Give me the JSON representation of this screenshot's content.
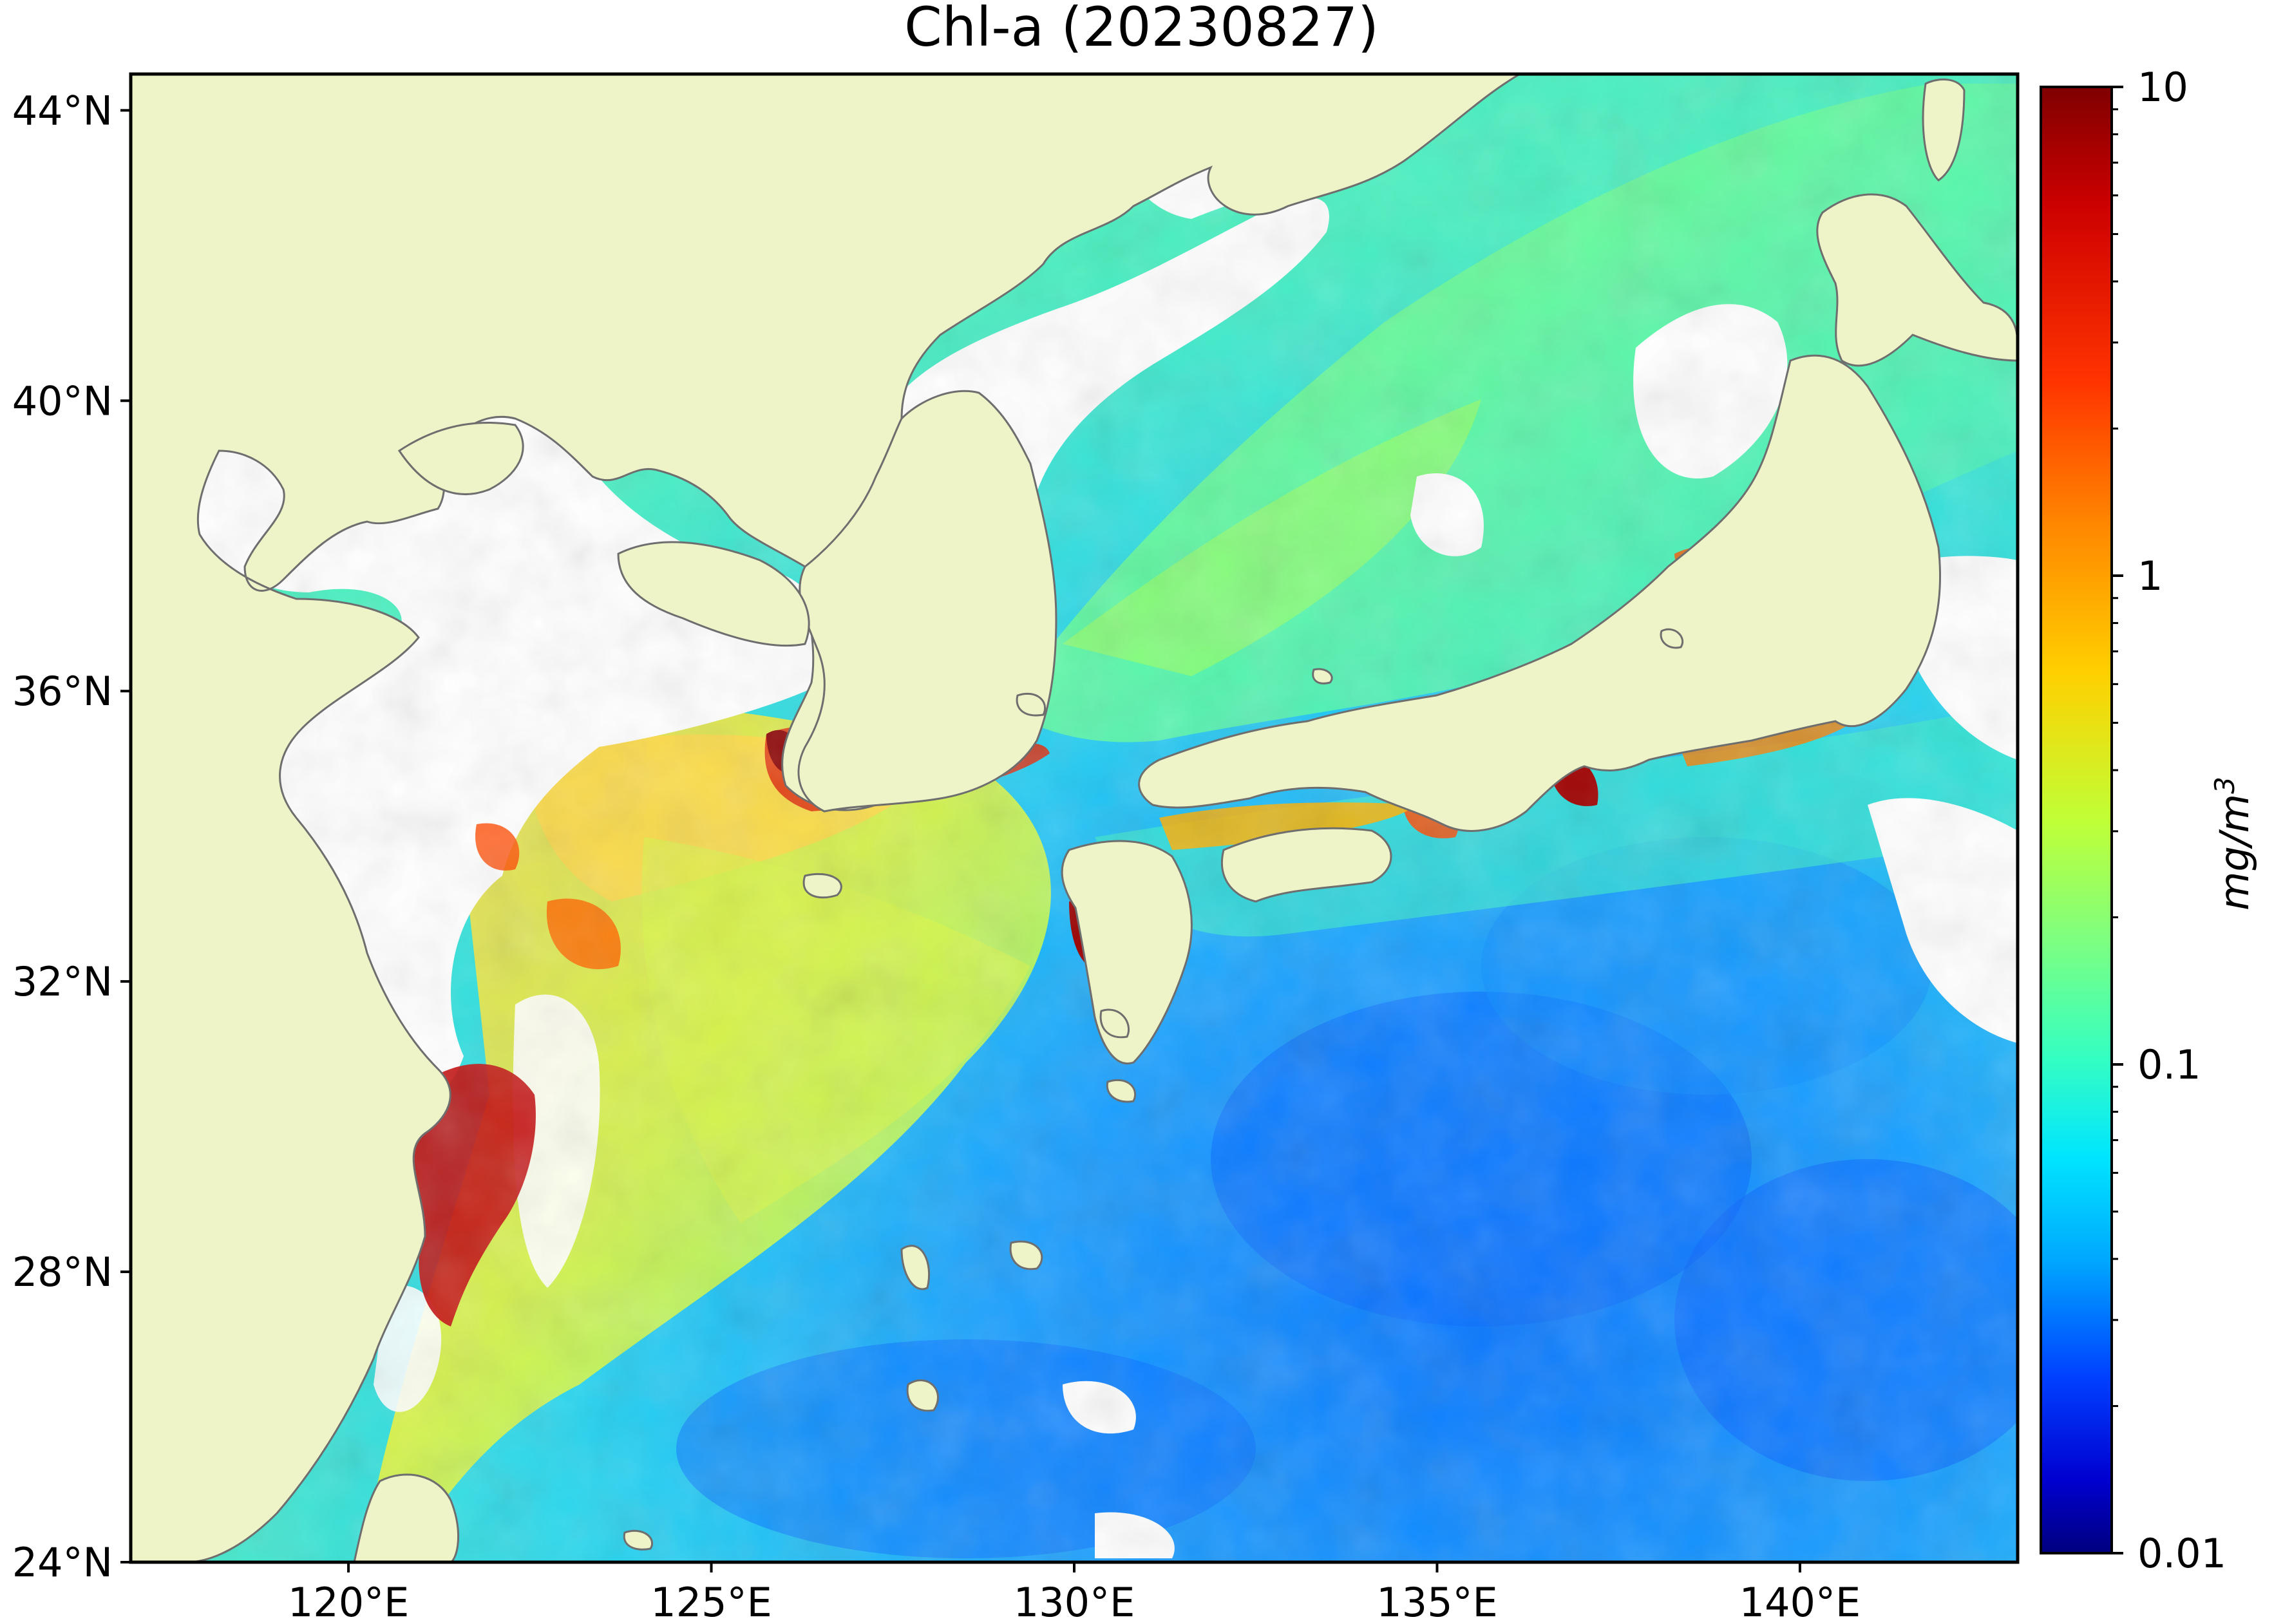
{
  "title": "Chl-a (20230827)",
  "map": {
    "lon_range": [
      117,
      143
    ],
    "lat_range": [
      24,
      44.5
    ],
    "lat_ticks": [
      {
        "value": 44,
        "label": "44°N"
      },
      {
        "value": 40,
        "label": "40°N"
      },
      {
        "value": 36,
        "label": "36°N"
      },
      {
        "value": 32,
        "label": "32°N"
      },
      {
        "value": 28,
        "label": "28°N"
      },
      {
        "value": 24,
        "label": "24°N"
      }
    ],
    "lon_ticks": [
      {
        "value": 120,
        "label": "120°E"
      },
      {
        "value": 125,
        "label": "125°E"
      },
      {
        "value": 130,
        "label": "130°E"
      },
      {
        "value": 135,
        "label": "135°E"
      },
      {
        "value": 140,
        "label": "140°E"
      }
    ],
    "colors": {
      "land": "#eff4c8",
      "no_data": "#ffffff",
      "coastline": "#6e6e6e"
    }
  },
  "colorbar": {
    "scale": "log",
    "range": [
      0.01,
      10
    ],
    "ticks": [
      {
        "value": 10,
        "label": "10"
      },
      {
        "value": 1,
        "label": "1"
      },
      {
        "value": 0.1,
        "label": "0.1"
      },
      {
        "value": 0.01,
        "label": "0.01"
      }
    ],
    "unit_base": "mg/m",
    "unit_exp": "3",
    "colormap": [
      "#00007f",
      "#0000ff",
      "#007fff",
      "#00e5ff",
      "#36ffc0",
      "#7fff7f",
      "#c0ff36",
      "#ffe500",
      "#ff8800",
      "#ff2200",
      "#7f0000"
    ]
  }
}
